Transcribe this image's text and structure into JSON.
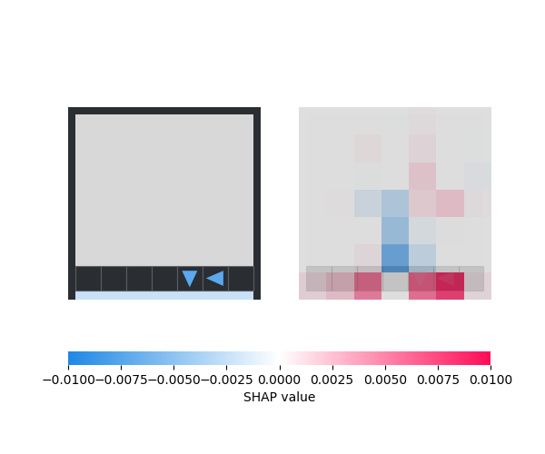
{
  "chart_data": {
    "type": "heatmap",
    "cells": [
      [
        0.0002,
        0.0003,
        0.0008,
        -0.001,
        0.0015,
        0.0002,
        0.0005
      ],
      [
        -0.0008,
        -0.0006,
        0.002,
        0.0005,
        0.0025,
        -0.0003,
        -0.001
      ],
      [
        -0.0008,
        -0.0003,
        -0.0012,
        0.0001,
        0.004,
        0.0002,
        -0.002
      ],
      [
        0.0002,
        0.0012,
        -0.0035,
        -0.0055,
        0.0035,
        0.0045,
        0.0015
      ],
      [
        0.0008,
        -0.0005,
        -0.0003,
        -0.0065,
        -0.0025,
        0.001,
        0.0003
      ],
      [
        -0.0008,
        0.0001,
        0.0022,
        -0.0085,
        -0.0045,
        0.0008,
        0.0002
      ],
      [
        0.003,
        0.0045,
        0.0075,
        0.0,
        0.008,
        0.0095,
        0.0025
      ]
    ],
    "colorbar_range": [
      -0.01,
      0.01
    ],
    "colorbar_ticks": [
      {
        "value": -0.01,
        "label": "−0.0100"
      },
      {
        "value": -0.0075,
        "label": "−0.0075"
      },
      {
        "value": -0.005,
        "label": "−0.0050"
      },
      {
        "value": -0.0025,
        "label": "−0.0025"
      },
      {
        "value": 0.0,
        "label": "0.0000"
      },
      {
        "value": 0.0025,
        "label": "0.0025"
      },
      {
        "value": 0.005,
        "label": "0.0050"
      },
      {
        "value": 0.0075,
        "label": "0.0075"
      },
      {
        "value": 0.01,
        "label": "0.0100"
      }
    ],
    "colorbar_label": "SHAP value",
    "tick_labels": false
  }
}
